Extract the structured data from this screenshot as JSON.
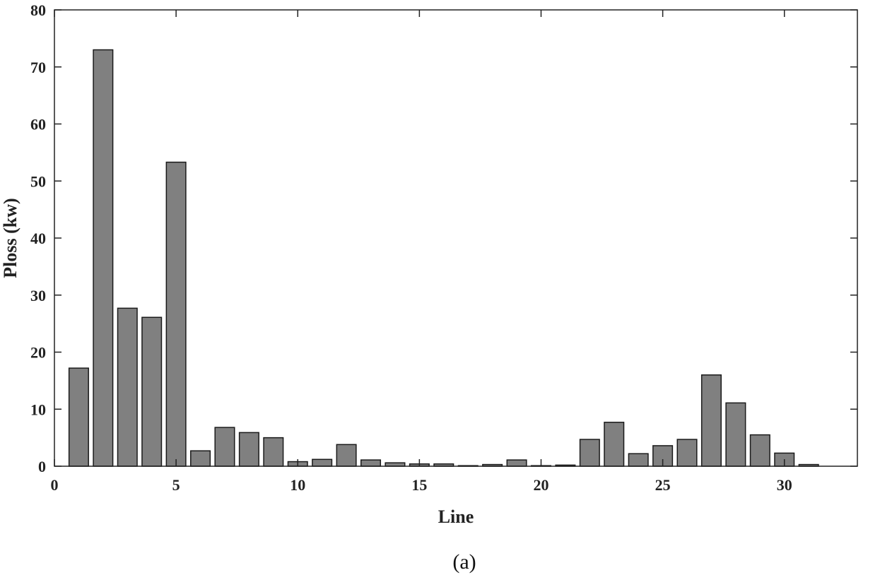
{
  "chart_data": {
    "type": "bar",
    "xlabel": "Line",
    "ylabel": "Ploss (kw)",
    "caption": "(a)",
    "xlim": [
      0,
      33
    ],
    "ylim": [
      0,
      80
    ],
    "xticks": [
      0,
      5,
      10,
      15,
      20,
      25,
      30
    ],
    "yticks": [
      0,
      10,
      20,
      30,
      40,
      50,
      60,
      70,
      80
    ],
    "grid": false,
    "bar_color": "#808080",
    "x": [
      1,
      2,
      3,
      4,
      5,
      6,
      7,
      8,
      9,
      10,
      11,
      12,
      13,
      14,
      15,
      16,
      17,
      18,
      19,
      20,
      21,
      22,
      23,
      24,
      25,
      26,
      27,
      28,
      29,
      30,
      31,
      32
    ],
    "values": [
      17.2,
      73.0,
      27.7,
      26.1,
      53.3,
      2.7,
      6.8,
      5.9,
      5.0,
      0.8,
      1.2,
      3.8,
      1.1,
      0.6,
      0.4,
      0.4,
      0.1,
      0.3,
      1.1,
      0.1,
      0.2,
      4.7,
      7.7,
      2.2,
      3.6,
      4.7,
      16.0,
      11.1,
      5.5,
      2.3,
      0.3,
      0.0
    ]
  }
}
